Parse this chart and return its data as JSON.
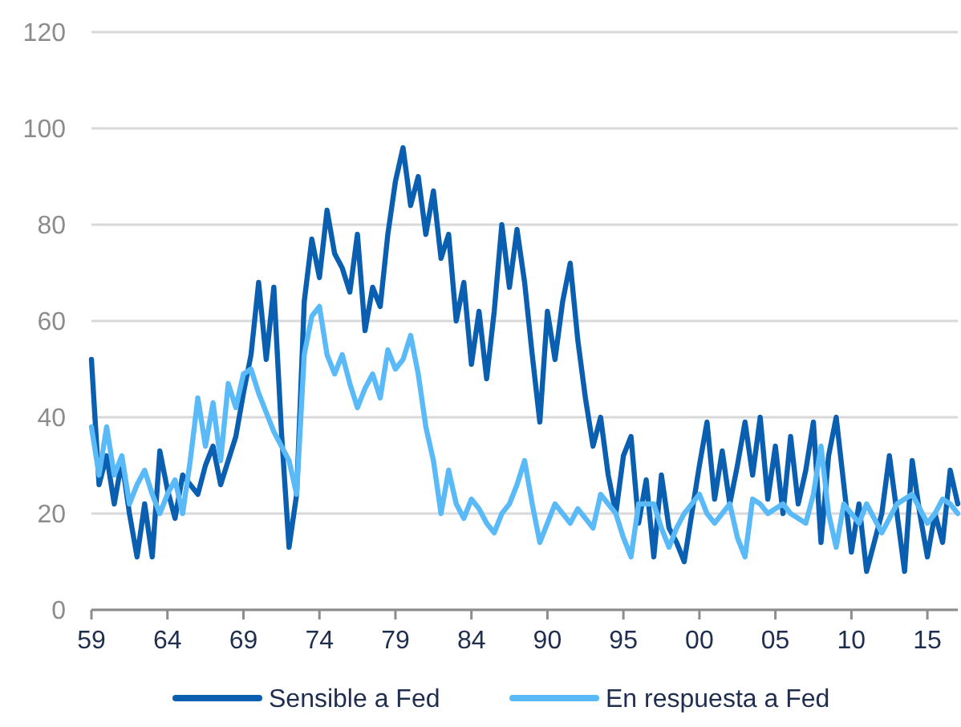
{
  "chart_data": {
    "type": "line",
    "ylim": [
      0,
      120
    ],
    "yticks": [
      0,
      20,
      40,
      60,
      80,
      100,
      120
    ],
    "categories": [
      "59",
      null,
      null,
      null,
      null,
      null,
      null,
      null,
      null,
      null,
      "64",
      null,
      null,
      null,
      null,
      null,
      null,
      null,
      null,
      null,
      "69",
      null,
      null,
      null,
      null,
      null,
      null,
      null,
      null,
      null,
      "74",
      null,
      null,
      null,
      null,
      null,
      null,
      null,
      null,
      null,
      "79",
      null,
      null,
      null,
      null,
      null,
      null,
      null,
      null,
      null,
      "84",
      null,
      null,
      null,
      null,
      null,
      null,
      null,
      null,
      null,
      "90",
      null,
      null,
      null,
      null,
      null,
      null,
      null,
      null,
      null,
      "95",
      null,
      null,
      null,
      null,
      null,
      null,
      null,
      null,
      null,
      "00",
      null,
      null,
      null,
      null,
      null,
      null,
      null,
      null,
      null,
      "05",
      null,
      null,
      null,
      null,
      null,
      null,
      null,
      null,
      null,
      "10",
      null,
      null,
      null,
      null,
      null,
      null,
      null,
      null,
      null,
      "15",
      null,
      null,
      null,
      null
    ],
    "grid": "y",
    "legend": "bottom",
    "line_style": "solid",
    "marker": "none",
    "series": [
      {
        "name": "Sensible a Fed",
        "color": "#0b5fb0",
        "values": [
          52,
          26,
          32,
          22,
          31,
          20,
          11,
          22,
          11,
          33,
          25,
          19,
          28,
          26,
          24,
          30,
          34,
          26,
          31,
          36,
          45,
          53,
          68,
          52,
          67,
          37,
          13,
          24,
          64,
          77,
          69,
          83,
          74,
          71,
          66,
          78,
          58,
          67,
          63,
          78,
          89,
          96,
          84,
          90,
          78,
          87,
          73,
          78,
          60,
          68,
          51,
          62,
          48,
          62,
          80,
          67,
          79,
          68,
          53,
          39,
          62,
          52,
          64,
          72,
          56,
          44,
          34,
          40,
          28,
          20,
          32,
          36,
          18,
          27,
          11,
          28,
          17,
          14,
          10,
          20,
          30,
          39,
          23,
          33,
          22,
          30,
          39,
          28,
          40,
          23,
          34,
          20,
          36,
          22,
          29,
          39,
          14,
          32,
          40,
          26,
          12,
          22,
          8,
          14,
          20,
          32,
          20,
          8,
          31,
          20,
          11,
          20,
          14,
          29,
          22
        ]
      },
      {
        "name": "En respuesta a Fed",
        "color": "#59baf7",
        "values": [
          38,
          28,
          38,
          28,
          32,
          22,
          26,
          29,
          24,
          20,
          24,
          27,
          20,
          31,
          44,
          34,
          43,
          31,
          47,
          42,
          49,
          50,
          45,
          41,
          37,
          34,
          31,
          24,
          53,
          61,
          63,
          53,
          49,
          53,
          47,
          42,
          46,
          49,
          44,
          54,
          50,
          52,
          57,
          49,
          38,
          31,
          20,
          29,
          22,
          19,
          23,
          21,
          18,
          16,
          20,
          22,
          26,
          31,
          22,
          14,
          18,
          22,
          20,
          18,
          21,
          19,
          17,
          24,
          22,
          20,
          15,
          11,
          22,
          22,
          22,
          17,
          13,
          17,
          20,
          22,
          24,
          20,
          18,
          20,
          22,
          15,
          11,
          23,
          22,
          20,
          21,
          22,
          20,
          19,
          18,
          24,
          34,
          20,
          13,
          22,
          20,
          18,
          22,
          19,
          16,
          19,
          22,
          23,
          24,
          21,
          18,
          20,
          23,
          22,
          20
        ]
      }
    ]
  }
}
